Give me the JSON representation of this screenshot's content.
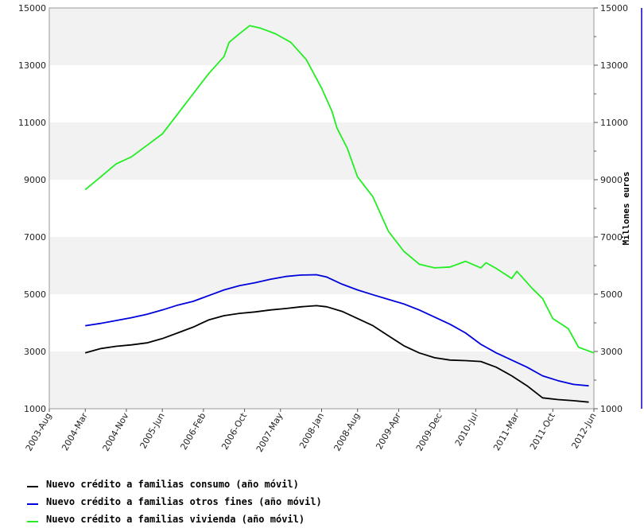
{
  "chart_data": {
    "type": "line",
    "title": "",
    "xlabel": "",
    "ylabel_left": "",
    "ylabel_right": "Millones euros",
    "ylim": [
      1000,
      15000
    ],
    "y_ticks": [
      "1000",
      "3000",
      "5000",
      "7000",
      "9000",
      "11000",
      "13000",
      "15000"
    ],
    "right_ticks": [
      "1000",
      "3000",
      "5000",
      "7000",
      "9000",
      "11000",
      "13000",
      "15000"
    ],
    "x_ticks": [
      "2003-Aug",
      "2004-Mar",
      "2004-Nov",
      "2005-Jun",
      "2006-Feb",
      "2006-Oct",
      "2007-May",
      "2008-Jan",
      "2008-Aug",
      "2009-Apr",
      "2009-Dec",
      "2010-Jul",
      "2011-Mar",
      "2011-Oct",
      "2012-Jun"
    ],
    "x_range": [
      "2003-08",
      "2012-06"
    ],
    "grid": "horizontal alternating bands",
    "legend_position": "bottom",
    "colors": {
      "consumo": "#000000",
      "otros": "#0000dd",
      "vivienda": "#22ee22",
      "right_axis": "#0000cc",
      "band": "#f2f2f2"
    },
    "series": [
      {
        "name": "Nuevo crédito a familias consumo (año móvil)",
        "color": "#000000",
        "points": [
          [
            "2004-03",
            2950
          ],
          [
            "2004-06",
            3100
          ],
          [
            "2004-09",
            3180
          ],
          [
            "2004-12",
            3230
          ],
          [
            "2005-03",
            3300
          ],
          [
            "2005-06",
            3450
          ],
          [
            "2005-09",
            3650
          ],
          [
            "2005-12",
            3850
          ],
          [
            "2006-03",
            4100
          ],
          [
            "2006-06",
            4250
          ],
          [
            "2006-09",
            4330
          ],
          [
            "2006-12",
            4380
          ],
          [
            "2007-03",
            4450
          ],
          [
            "2007-06",
            4500
          ],
          [
            "2007-09",
            4560
          ],
          [
            "2007-12",
            4600
          ],
          [
            "2008-02",
            4560
          ],
          [
            "2008-05",
            4400
          ],
          [
            "2008-08",
            4150
          ],
          [
            "2008-11",
            3900
          ],
          [
            "2009-02",
            3550
          ],
          [
            "2009-05",
            3200
          ],
          [
            "2009-08",
            2950
          ],
          [
            "2009-11",
            2780
          ],
          [
            "2010-02",
            2700
          ],
          [
            "2010-05",
            2680
          ],
          [
            "2010-08",
            2650
          ],
          [
            "2010-11",
            2450
          ],
          [
            "2011-02",
            2150
          ],
          [
            "2011-05",
            1800
          ],
          [
            "2011-08",
            1380
          ],
          [
            "2011-11",
            1320
          ],
          [
            "2012-02",
            1280
          ],
          [
            "2012-05",
            1230
          ]
        ]
      },
      {
        "name": "Nuevo crédito a familias otros fines (año móvil)",
        "color": "#0000dd",
        "points": [
          [
            "2004-03",
            3900
          ],
          [
            "2004-06",
            3980
          ],
          [
            "2004-09",
            4080
          ],
          [
            "2004-12",
            4180
          ],
          [
            "2005-03",
            4300
          ],
          [
            "2005-06",
            4450
          ],
          [
            "2005-09",
            4620
          ],
          [
            "2005-12",
            4750
          ],
          [
            "2006-03",
            4950
          ],
          [
            "2006-06",
            5150
          ],
          [
            "2006-09",
            5300
          ],
          [
            "2006-12",
            5400
          ],
          [
            "2007-03",
            5520
          ],
          [
            "2007-06",
            5620
          ],
          [
            "2007-09",
            5670
          ],
          [
            "2007-12",
            5680
          ],
          [
            "2008-02",
            5600
          ],
          [
            "2008-05",
            5350
          ],
          [
            "2008-08",
            5150
          ],
          [
            "2008-11",
            4980
          ],
          [
            "2009-02",
            4820
          ],
          [
            "2009-05",
            4660
          ],
          [
            "2009-08",
            4450
          ],
          [
            "2009-11",
            4200
          ],
          [
            "2010-02",
            3950
          ],
          [
            "2010-05",
            3650
          ],
          [
            "2010-08",
            3250
          ],
          [
            "2010-11",
            2950
          ],
          [
            "2011-02",
            2700
          ],
          [
            "2011-05",
            2450
          ],
          [
            "2011-08",
            2150
          ],
          [
            "2011-11",
            1980
          ],
          [
            "2012-02",
            1850
          ],
          [
            "2012-05",
            1800
          ]
        ]
      },
      {
        "name": "Nuevo crédito a familias vivienda (año móvil)",
        "color": "#22ee22",
        "points": [
          [
            "2004-03",
            8650
          ],
          [
            "2004-06",
            9100
          ],
          [
            "2004-09",
            9550
          ],
          [
            "2004-12",
            9800
          ],
          [
            "2005-03",
            10200
          ],
          [
            "2005-06",
            10600
          ],
          [
            "2005-09",
            11300
          ],
          [
            "2005-12",
            12000
          ],
          [
            "2006-03",
            12700
          ],
          [
            "2006-06",
            13300
          ],
          [
            "2006-07",
            13800
          ],
          [
            "2006-09",
            14100
          ],
          [
            "2006-11",
            14380
          ],
          [
            "2007-01",
            14300
          ],
          [
            "2007-04",
            14100
          ],
          [
            "2007-07",
            13800
          ],
          [
            "2007-10",
            13200
          ],
          [
            "2008-01",
            12200
          ],
          [
            "2008-03",
            11400
          ],
          [
            "2008-04",
            10800
          ],
          [
            "2008-06",
            10100
          ],
          [
            "2008-08",
            9100
          ],
          [
            "2008-11",
            8400
          ],
          [
            "2009-02",
            7200
          ],
          [
            "2009-05",
            6500
          ],
          [
            "2009-08",
            6050
          ],
          [
            "2009-11",
            5920
          ],
          [
            "2010-02",
            5950
          ],
          [
            "2010-05",
            6150
          ],
          [
            "2010-08",
            5920
          ],
          [
            "2010-09",
            6100
          ],
          [
            "2010-11",
            5900
          ],
          [
            "2011-02",
            5550
          ],
          [
            "2011-03",
            5800
          ],
          [
            "2011-06",
            5200
          ],
          [
            "2011-08",
            4850
          ],
          [
            "2011-10",
            4150
          ],
          [
            "2012-01",
            3800
          ],
          [
            "2012-03",
            3150
          ],
          [
            "2012-06",
            2950
          ]
        ]
      }
    ]
  }
}
